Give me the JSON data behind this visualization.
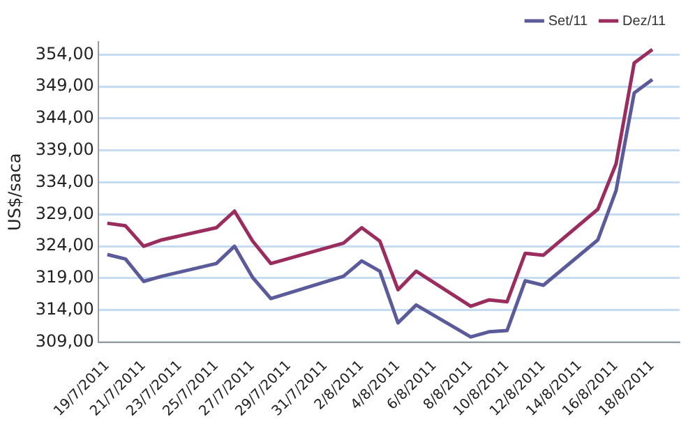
{
  "chart_data": {
    "type": "line",
    "ylabel": "US$/saca",
    "x": [
      "2011-07-19",
      "2011-07-20",
      "2011-07-21",
      "2011-07-22",
      "2011-07-25",
      "2011-07-26",
      "2011-07-27",
      "2011-07-28",
      "2011-08-01",
      "2011-08-02",
      "2011-08-03",
      "2011-08-04",
      "2011-08-05",
      "2011-08-08",
      "2011-08-09",
      "2011-08-10",
      "2011-08-11",
      "2011-08-12",
      "2011-08-15",
      "2011-08-16",
      "2011-08-17",
      "2011-08-18"
    ],
    "series": [
      {
        "name": "Set/11",
        "color": "#5b5b9b",
        "values": [
          322.7,
          322.0,
          318.5,
          319.3,
          321.3,
          324.0,
          319.1,
          315.8,
          319.3,
          321.7,
          320.1,
          312.0,
          314.8,
          309.8,
          310.6,
          310.8,
          318.6,
          317.9,
          325.0,
          332.7,
          348.0,
          350.1
        ]
      },
      {
        "name": "Dez/11",
        "color": "#9b2d5e",
        "values": [
          327.6,
          327.2,
          324.0,
          325.0,
          326.9,
          329.5,
          324.8,
          321.3,
          324.5,
          326.9,
          324.8,
          317.2,
          320.1,
          314.6,
          315.6,
          315.3,
          322.9,
          322.6,
          329.8,
          336.9,
          352.7,
          354.8
        ]
      }
    ],
    "xlim": [
      "2011-07-18T12:00",
      "2011-08-19T12:00"
    ],
    "xticks": [
      {
        "value": "2011-07-19",
        "label": "19/7/2011"
      },
      {
        "value": "2011-07-21",
        "label": "21/7/2011"
      },
      {
        "value": "2011-07-23",
        "label": "23/7/2011"
      },
      {
        "value": "2011-07-25",
        "label": "25/7/2011"
      },
      {
        "value": "2011-07-27",
        "label": "27/7/2011"
      },
      {
        "value": "2011-07-29",
        "label": "29/7/2011"
      },
      {
        "value": "2011-07-31",
        "label": "31/7/2011"
      },
      {
        "value": "2011-08-02",
        "label": "2/8/2011"
      },
      {
        "value": "2011-08-04",
        "label": "4/8/2011"
      },
      {
        "value": "2011-08-06",
        "label": "6/8/2011"
      },
      {
        "value": "2011-08-08",
        "label": "8/8/2011"
      },
      {
        "value": "2011-08-10",
        "label": "10/8/2011"
      },
      {
        "value": "2011-08-12",
        "label": "12/8/2011"
      },
      {
        "value": "2011-08-14",
        "label": "14/8/2011"
      },
      {
        "value": "2011-08-16",
        "label": "16/8/2011"
      },
      {
        "value": "2011-08-18",
        "label": "18/8/2011"
      }
    ],
    "ylim": [
      309,
      356
    ],
    "yticks": [
      {
        "value": 309,
        "label": "309,00"
      },
      {
        "value": 314,
        "label": "314,00"
      },
      {
        "value": 319,
        "label": "319,00"
      },
      {
        "value": 324,
        "label": "324,00"
      },
      {
        "value": 329,
        "label": "329,00"
      },
      {
        "value": 334,
        "label": "334,00"
      },
      {
        "value": 339,
        "label": "339,00"
      },
      {
        "value": 344,
        "label": "344,00"
      },
      {
        "value": 349,
        "label": "349,00"
      },
      {
        "value": 354,
        "label": "354,00"
      }
    ],
    "grid": "y",
    "legend": "top",
    "marker": "none",
    "line_style": "solid"
  }
}
